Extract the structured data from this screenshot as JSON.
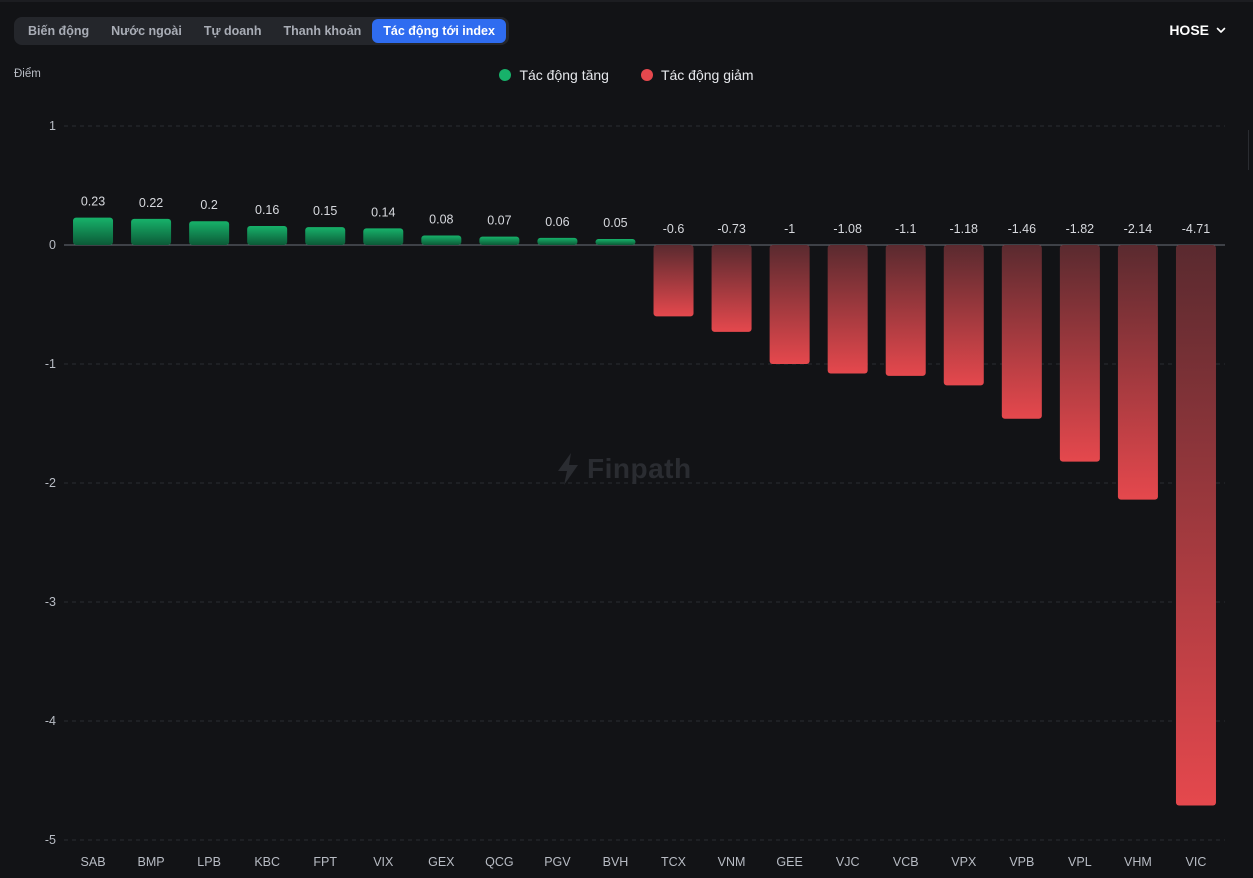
{
  "tabs": [
    {
      "label": "Biến động",
      "active": false
    },
    {
      "label": "Nước ngoài",
      "active": false
    },
    {
      "label": "Tự doanh",
      "active": false
    },
    {
      "label": "Thanh khoản",
      "active": false
    },
    {
      "label": "Tác động tới index",
      "active": true
    }
  ],
  "exchange": {
    "label": "HOSE",
    "icon": "chevron-down-icon"
  },
  "watermark": {
    "text": "Finpath",
    "icon": "lightning-bolt-icon"
  },
  "colors": {
    "positive": "#17b26a",
    "negative": "#e5484d",
    "accent": "#2f6cf0"
  },
  "chart_data": {
    "type": "bar",
    "ylabel": "Điểm",
    "ylim": [
      -5,
      1
    ],
    "yticks": [
      1,
      0,
      -1,
      -2,
      -3,
      -4,
      -5
    ],
    "grid": true,
    "legend": [
      {
        "name": "Tác động tăng",
        "color": "#17b26a"
      },
      {
        "name": "Tác động giảm",
        "color": "#e5484d"
      }
    ],
    "legend_position": "top-center",
    "categories": [
      "SAB",
      "BMP",
      "LPB",
      "KBC",
      "FPT",
      "VIX",
      "GEX",
      "QCG",
      "PGV",
      "BVH",
      "TCX",
      "VNM",
      "GEE",
      "VJC",
      "VCB",
      "VPX",
      "VPB",
      "VPL",
      "VHM",
      "VIC"
    ],
    "values": [
      0.23,
      0.22,
      0.2,
      0.16,
      0.15,
      0.14,
      0.08,
      0.07,
      0.06,
      0.05,
      -0.6,
      -0.73,
      -1,
      -1.08,
      -1.1,
      -1.18,
      -1.46,
      -1.82,
      -2.14,
      -4.71
    ],
    "value_labels": [
      "0.23",
      "0.22",
      "0.2",
      "0.16",
      "0.15",
      "0.14",
      "0.08",
      "0.07",
      "0.06",
      "0.05",
      "-0.6",
      "-0.73",
      "-1",
      "-1.08",
      "-1.1",
      "-1.18",
      "-1.46",
      "-1.82",
      "-2.14",
      "-4.71"
    ]
  }
}
